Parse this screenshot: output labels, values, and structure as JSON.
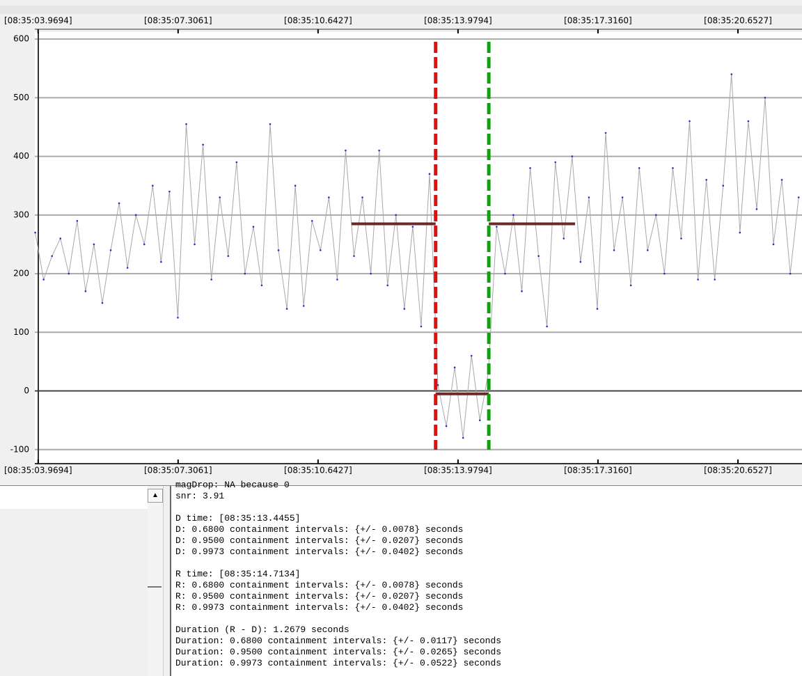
{
  "chart_data": {
    "type": "line",
    "x": [
      3.9,
      4.1,
      4.3,
      4.5,
      4.7,
      4.9,
      5.1,
      5.3,
      5.5,
      5.7,
      5.9,
      6.1,
      6.3,
      6.5,
      6.7,
      6.9,
      7.1,
      7.3,
      7.5,
      7.7,
      7.9,
      8.1,
      8.3,
      8.5,
      8.7,
      8.9,
      9.1,
      9.3,
      9.5,
      9.7,
      9.9,
      10.1,
      10.3,
      10.5,
      10.7,
      10.9,
      11.1,
      11.3,
      11.5,
      11.7,
      11.9,
      12.1,
      12.3,
      12.5,
      12.7,
      12.9,
      13.1,
      13.3,
      13.5,
      13.7,
      13.9,
      14.1,
      14.3,
      14.5,
      14.7,
      14.9,
      15.1,
      15.3,
      15.5,
      15.7,
      15.9,
      16.1,
      16.3,
      16.5,
      16.7,
      16.9,
      17.1,
      17.3,
      17.5,
      17.7,
      17.9,
      18.1,
      18.3,
      18.5,
      18.7,
      18.9,
      19.1,
      19.3,
      19.5,
      19.7,
      19.9,
      20.1,
      20.3,
      20.5,
      20.7,
      20.9,
      21.1,
      21.3,
      21.5,
      21.7,
      21.9,
      22.1
    ],
    "series": [
      {
        "color": "#a8a8a8",
        "marker_color": "#2a2ad0",
        "values": [
          270,
          190,
          230,
          260,
          200,
          290,
          170,
          250,
          150,
          240,
          320,
          210,
          300,
          250,
          350,
          220,
          340,
          125,
          455,
          250,
          420,
          190,
          330,
          230,
          390,
          200,
          280,
          180,
          455,
          240,
          140,
          350,
          145,
          290,
          240,
          330,
          190,
          410,
          230,
          330,
          200,
          410,
          180,
          300,
          140,
          280,
          110,
          370,
          10,
          -60,
          40,
          -80,
          60,
          -50,
          30,
          280,
          200,
          300,
          170,
          380,
          230,
          110,
          390,
          260,
          400,
          220,
          330,
          140,
          440,
          240,
          330,
          180,
          380,
          240,
          300,
          200,
          380,
          260,
          460,
          190,
          360,
          190,
          350,
          540,
          270,
          460,
          310,
          500,
          250,
          360,
          200,
          330
        ]
      }
    ],
    "xlim": [
      3.89,
      22.18
    ],
    "xticks": [
      {
        "value": 3.9694,
        "label": "[08:35:03.9694]"
      },
      {
        "value": 7.3061,
        "label": "[08:35:07.3061]"
      },
      {
        "value": 10.6427,
        "label": "[08:35:10.6427]"
      },
      {
        "value": 13.9794,
        "label": "[08:35:13.9794]"
      },
      {
        "value": 17.316,
        "label": "[08:35:17.3160]"
      },
      {
        "value": 20.6527,
        "label": "[08:35:20.6527]"
      }
    ],
    "ylim": [
      -124,
      612
    ],
    "yticks": [
      -100,
      0,
      100,
      200,
      300,
      400,
      500,
      600
    ],
    "grid": true,
    "markers": [
      {
        "x": 13.4455,
        "color": "#e01010"
      },
      {
        "x": 14.7134,
        "color": "#10a010"
      }
    ],
    "levels": [
      {
        "x": [
          11.44,
          13.4455
        ],
        "y": 285
      },
      {
        "x": [
          13.4455,
          14.7134
        ],
        "y": -5
      },
      {
        "x": [
          14.7134,
          16.77
        ],
        "y": 285
      }
    ],
    "level_color": "#6b2a2a"
  },
  "log_panel": {
    "blocks": [
      [
        "magDrop: NA because 0",
        "snr: 3.91"
      ],
      [
        "D time: [08:35:13.4455]",
        "D: 0.6800 containment intervals: {+/- 0.0078} seconds",
        "D: 0.9500 containment intervals: {+/- 0.0207} seconds",
        "D: 0.9973 containment intervals: {+/- 0.0402} seconds"
      ],
      [
        "R time: [08:35:14.7134]",
        "R: 0.6800 containment intervals: {+/- 0.0078} seconds",
        "R: 0.9500 containment intervals: {+/- 0.0207} seconds",
        "R: 0.9973 containment intervals: {+/- 0.0402} seconds"
      ],
      [
        "Duration (R - D): 1.2679 seconds",
        "Duration: 0.6800 containment intervals: {+/- 0.0117} seconds",
        "Duration: 0.9500 containment intervals: {+/- 0.0265} seconds",
        "Duration: 0.9973 containment intervals: {+/- 0.0522} seconds"
      ]
    ]
  }
}
